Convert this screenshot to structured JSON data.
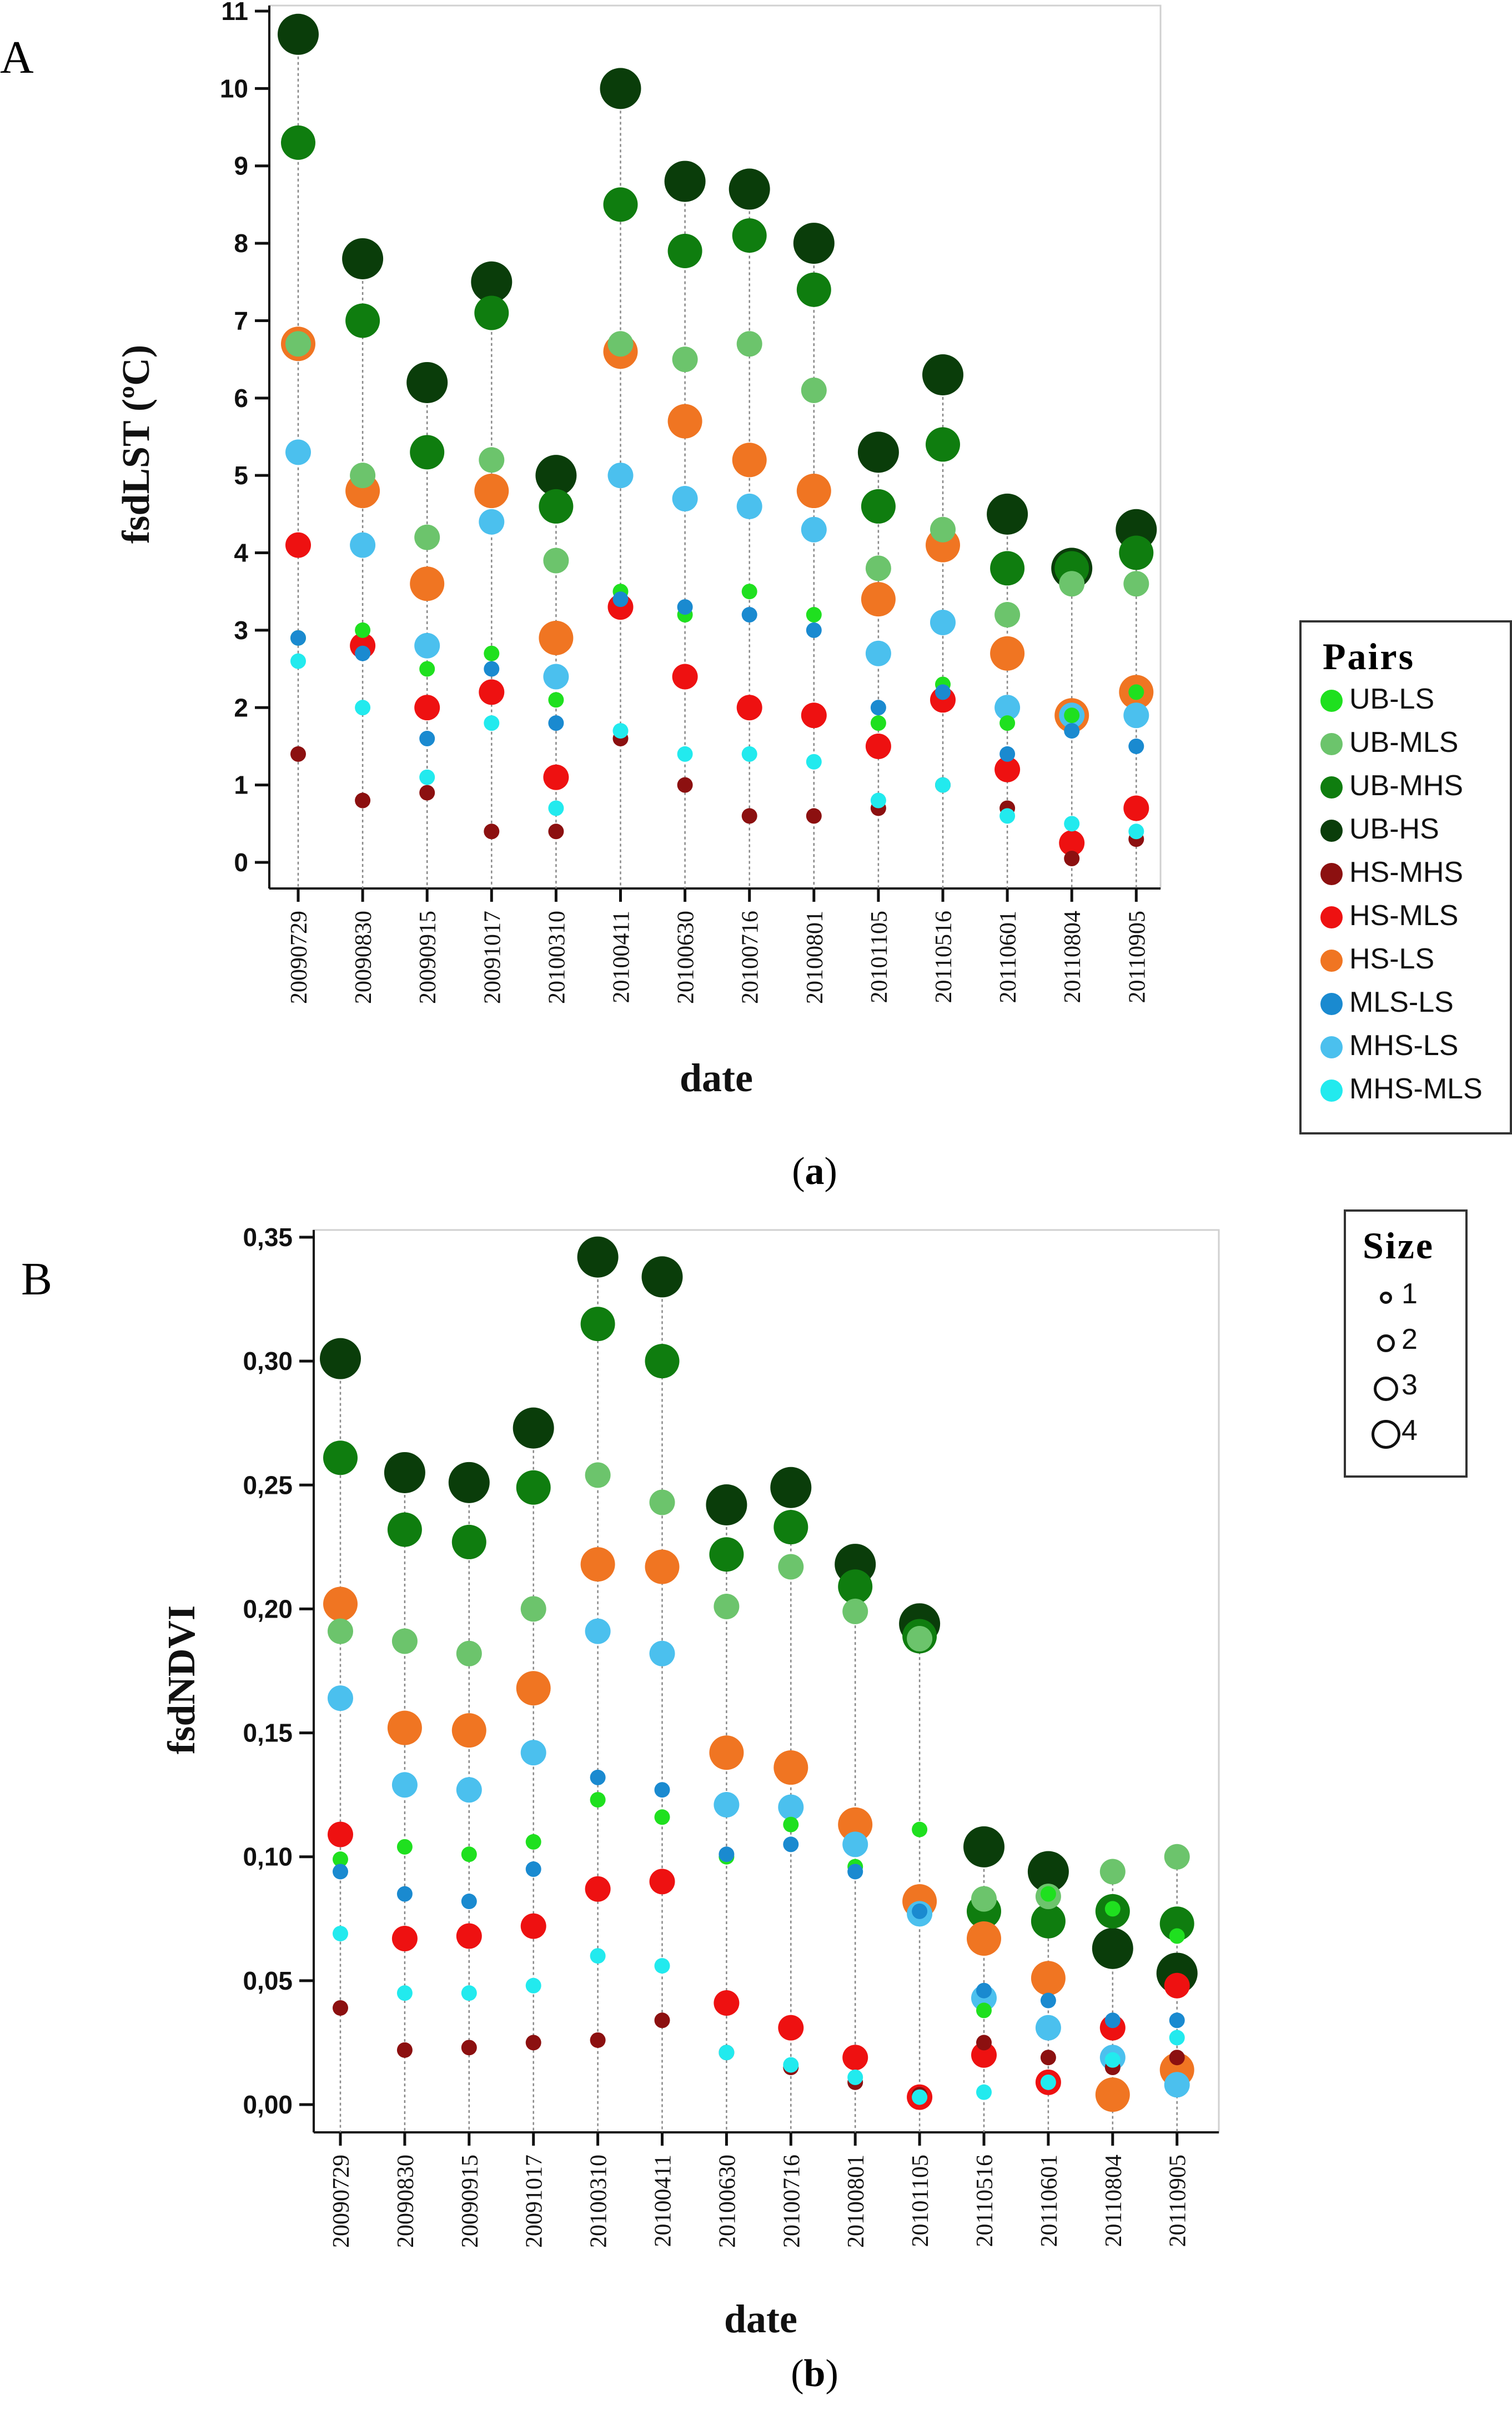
{
  "panel_labels": {
    "a": "A",
    "b": "B"
  },
  "captions": {
    "a": "a",
    "b": "b"
  },
  "pairs": [
    {
      "name": "UB-LS",
      "color": "#1fe01f"
    },
    {
      "name": "UB-MLS",
      "color": "#6cc46c"
    },
    {
      "name": "UB-MHS",
      "color": "#0f7d0f"
    },
    {
      "name": "UB-HS",
      "color": "#0a3d0a"
    },
    {
      "name": "HS-MHS",
      "color": "#8c1010"
    },
    {
      "name": "HS-MLS",
      "color": "#ee1111"
    },
    {
      "name": "HS-LS",
      "color": "#f07522"
    },
    {
      "name": "MLS-LS",
      "color": "#1a8ad0"
    },
    {
      "name": "MHS-LS",
      "color": "#4bc0ee"
    },
    {
      "name": "MHS-MLS",
      "color": "#22eaee"
    }
  ],
  "legend_pairs_title": "Pairs",
  "legend_size_title": "Size",
  "legend_size_items": [
    "1",
    "2",
    "3",
    "4"
  ],
  "chart_data": [
    {
      "type": "scatter",
      "panel": "A",
      "xlabel": "date",
      "ylabel": "fsdLST (ºC)",
      "ylim": [
        0,
        11
      ],
      "yticks": [
        "0",
        "1",
        "2",
        "3",
        "4",
        "5",
        "6",
        "7",
        "8",
        "9",
        "10",
        "11"
      ],
      "categories": [
        "20090729",
        "20090830",
        "20090915",
        "20091017",
        "20100310",
        "20100411",
        "20100630",
        "20100716",
        "20100801",
        "20101105",
        "20110516",
        "20110601",
        "20110804",
        "20110905"
      ],
      "series": [
        {
          "name": "UB-LS",
          "size": 1,
          "values": [
            2.9,
            3.0,
            2.5,
            2.7,
            2.1,
            3.5,
            3.2,
            3.5,
            3.2,
            1.8,
            2.3,
            1.8,
            1.9,
            2.2
          ]
        },
        {
          "name": "UB-MLS",
          "size": 2,
          "values": [
            6.7,
            5.0,
            4.2,
            5.2,
            3.9,
            6.7,
            6.5,
            6.7,
            6.1,
            3.8,
            4.3,
            3.2,
            3.6,
            3.6
          ]
        },
        {
          "name": "UB-MHS",
          "size": 3,
          "values": [
            9.3,
            7.0,
            5.3,
            7.1,
            4.6,
            8.5,
            7.9,
            8.1,
            7.4,
            4.6,
            5.4,
            3.8,
            3.8,
            4.0
          ]
        },
        {
          "name": "UB-HS",
          "size": 4,
          "values": [
            10.7,
            7.8,
            6.2,
            7.5,
            5.0,
            10.0,
            8.8,
            8.7,
            8.0,
            5.3,
            6.3,
            4.5,
            3.8,
            4.3
          ]
        },
        {
          "name": "HS-MHS",
          "size": 1,
          "values": [
            1.4,
            0.8,
            0.9,
            0.4,
            0.4,
            1.6,
            1.0,
            0.6,
            0.6,
            0.7,
            1.0,
            0.7,
            0.05,
            0.3
          ]
        },
        {
          "name": "HS-MLS",
          "size": 2,
          "values": [
            4.1,
            2.8,
            2.0,
            2.2,
            1.1,
            3.3,
            2.4,
            2.0,
            1.9,
            1.5,
            2.1,
            1.2,
            0.25,
            0.7
          ]
        },
        {
          "name": "HS-LS",
          "size": 3,
          "values": [
            6.7,
            4.8,
            3.6,
            4.8,
            2.9,
            6.6,
            5.7,
            5.2,
            4.8,
            3.4,
            4.1,
            2.7,
            1.9,
            2.2
          ]
        },
        {
          "name": "MLS-LS",
          "size": 1,
          "values": [
            2.9,
            2.7,
            1.6,
            2.5,
            1.8,
            3.4,
            3.3,
            3.2,
            3.0,
            2.0,
            2.2,
            1.4,
            1.7,
            1.5
          ]
        },
        {
          "name": "MHS-LS",
          "size": 2,
          "values": [
            5.3,
            4.1,
            2.8,
            4.4,
            2.4,
            5.0,
            4.7,
            4.6,
            4.3,
            2.7,
            3.1,
            2.0,
            1.9,
            1.9
          ]
        },
        {
          "name": "MHS-MLS",
          "size": 1,
          "values": [
            2.6,
            2.0,
            1.1,
            1.8,
            0.7,
            1.7,
            1.4,
            1.4,
            1.3,
            0.8,
            1.0,
            0.6,
            0.5,
            0.4
          ]
        }
      ]
    },
    {
      "type": "scatter",
      "panel": "B",
      "xlabel": "date",
      "ylabel": "fsdNDVI",
      "ylim": [
        0,
        0.35
      ],
      "yticks": [
        "0,00",
        "0,05",
        "0,10",
        "0,15",
        "0,20",
        "0,25",
        "0,30",
        "0,35"
      ],
      "categories": [
        "20090729",
        "20090830",
        "20090915",
        "20091017",
        "20100310",
        "20100411",
        "20100630",
        "20100716",
        "20100801",
        "20101105",
        "20110516",
        "20110601",
        "20110804",
        "20110905"
      ],
      "series": [
        {
          "name": "UB-LS",
          "size": 1,
          "values": [
            0.099,
            0.104,
            0.101,
            0.106,
            0.123,
            0.116,
            0.1,
            0.113,
            0.096,
            0.111,
            0.038,
            0.085,
            0.079,
            0.068
          ]
        },
        {
          "name": "UB-MLS",
          "size": 2,
          "values": [
            0.191,
            0.187,
            0.182,
            0.2,
            0.254,
            0.243,
            0.201,
            0.217,
            0.199,
            0.188,
            0.083,
            0.084,
            0.094,
            0.1
          ]
        },
        {
          "name": "UB-MHS",
          "size": 3,
          "values": [
            0.261,
            0.232,
            0.227,
            0.249,
            0.315,
            0.3,
            0.222,
            0.233,
            0.209,
            0.189,
            0.078,
            0.074,
            0.078,
            0.073
          ]
        },
        {
          "name": "UB-HS",
          "size": 4,
          "values": [
            0.301,
            0.255,
            0.251,
            0.273,
            0.342,
            0.334,
            0.242,
            0.249,
            0.218,
            0.194,
            0.104,
            0.094,
            0.063,
            0.053
          ]
        },
        {
          "name": "HS-MHS",
          "size": 1,
          "values": [
            0.039,
            0.022,
            0.023,
            0.025,
            0.026,
            0.034,
            0.021,
            0.015,
            0.009,
            0.004,
            0.025,
            0.019,
            0.015,
            0.019
          ]
        },
        {
          "name": "HS-MLS",
          "size": 2,
          "values": [
            0.109,
            0.067,
            0.068,
            0.072,
            0.087,
            0.09,
            0.041,
            0.031,
            0.019,
            0.003,
            0.02,
            0.009,
            0.031,
            0.048
          ]
        },
        {
          "name": "HS-LS",
          "size": 3,
          "values": [
            0.202,
            0.152,
            0.151,
            0.168,
            0.218,
            0.217,
            0.142,
            0.136,
            0.113,
            0.082,
            0.067,
            0.051,
            0.004,
            0.014
          ]
        },
        {
          "name": "MLS-LS",
          "size": 1,
          "values": [
            0.094,
            0.085,
            0.082,
            0.095,
            0.132,
            0.127,
            0.101,
            0.105,
            0.094,
            0.078,
            0.046,
            0.042,
            0.034,
            0.034
          ]
        },
        {
          "name": "MHS-LS",
          "size": 2,
          "values": [
            0.164,
            0.129,
            0.127,
            0.142,
            0.191,
            0.182,
            0.121,
            0.12,
            0.105,
            0.077,
            0.043,
            0.031,
            0.019,
            0.008
          ]
        },
        {
          "name": "MHS-MLS",
          "size": 1,
          "values": [
            0.069,
            0.045,
            0.045,
            0.048,
            0.06,
            0.056,
            0.021,
            0.016,
            0.011,
            0.003,
            0.005,
            0.009,
            0.018,
            0.027
          ]
        }
      ]
    }
  ]
}
